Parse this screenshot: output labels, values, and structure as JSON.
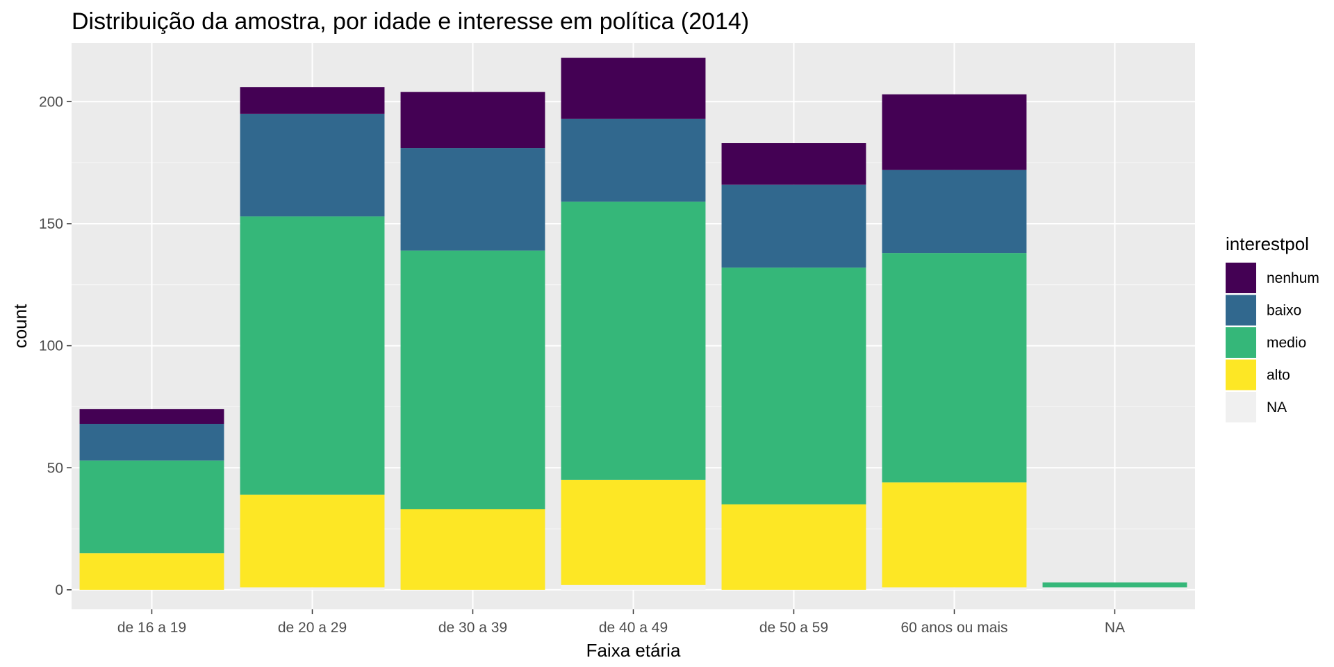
{
  "chart_data": {
    "type": "bar",
    "stacked": true,
    "title": "Distribuição da amostra, por idade e interesse em política (2014)",
    "xlabel": "Faixa etária",
    "ylabel": "count",
    "ylim": [
      -8,
      224
    ],
    "yticks": [
      0,
      50,
      100,
      150,
      200
    ],
    "grid": true,
    "categories": [
      "de 16 a 19",
      "de 20 a 29",
      "de 30 a 39",
      "de 40 a 49",
      "de 50 a 59",
      "60 anos ou mais",
      "NA"
    ],
    "series": [
      {
        "name": "NA",
        "color": "#f0f0f0",
        "values": [
          0,
          1,
          0,
          2,
          0,
          1,
          1
        ]
      },
      {
        "name": "alto",
        "color": "#fde725",
        "values": [
          15,
          38,
          33,
          43,
          35,
          43,
          0
        ]
      },
      {
        "name": "medio",
        "color": "#35b779",
        "values": [
          38,
          114,
          106,
          114,
          97,
          94,
          2
        ]
      },
      {
        "name": "baixo",
        "color": "#31688e",
        "values": [
          15,
          42,
          42,
          34,
          34,
          34,
          0
        ]
      },
      {
        "name": "nenhum",
        "color": "#440154",
        "values": [
          6,
          11,
          23,
          25,
          17,
          31,
          0
        ]
      }
    ],
    "legend": {
      "title": "interestpol",
      "placement": "right",
      "order": [
        "nenhum",
        "baixo",
        "medio",
        "alto",
        "NA"
      ]
    }
  },
  "colors": {
    "panel_background": "#ebebeb",
    "grid_major": "#ffffff",
    "grid_minor": "#f5f5f5"
  }
}
